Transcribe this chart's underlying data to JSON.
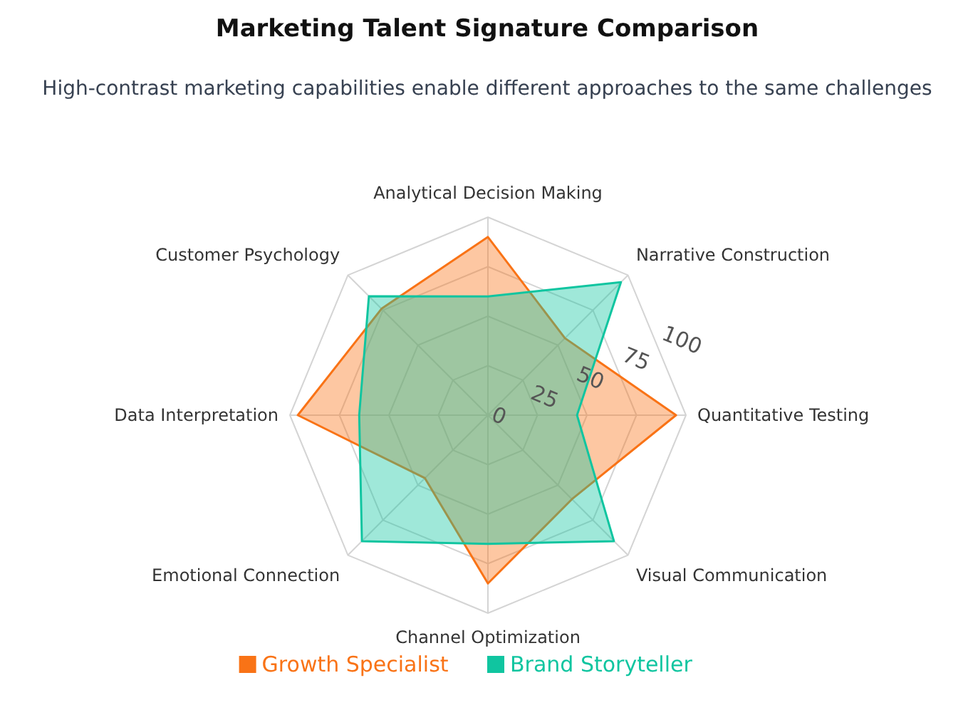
{
  "chart_data": {
    "type": "radar",
    "title": "Marketing Talent Signature Comparison",
    "subtitle": "High-contrast marketing capabilities enable different approaches to the same challenges",
    "categories": [
      "Analytical Decision Making",
      "Narrative Construction",
      "Quantitative Testing",
      "Visual Communication",
      "Channel Optimization",
      "Emotional Connection",
      "Data Interpretation",
      "Customer Psychology"
    ],
    "series": [
      {
        "name": "Growth Specialist",
        "color": "#f97316",
        "values": [
          90,
          55,
          95,
          60,
          85,
          45,
          96,
          76
        ]
      },
      {
        "name": "Brand Storyteller",
        "color": "#10c5a0",
        "values": [
          60,
          95,
          45,
          90,
          65,
          90,
          65,
          85
        ]
      }
    ],
    "ylim": [
      0,
      100
    ],
    "yticks": [
      0,
      25,
      50,
      75,
      100
    ],
    "grid": true,
    "legend": "bottom"
  }
}
